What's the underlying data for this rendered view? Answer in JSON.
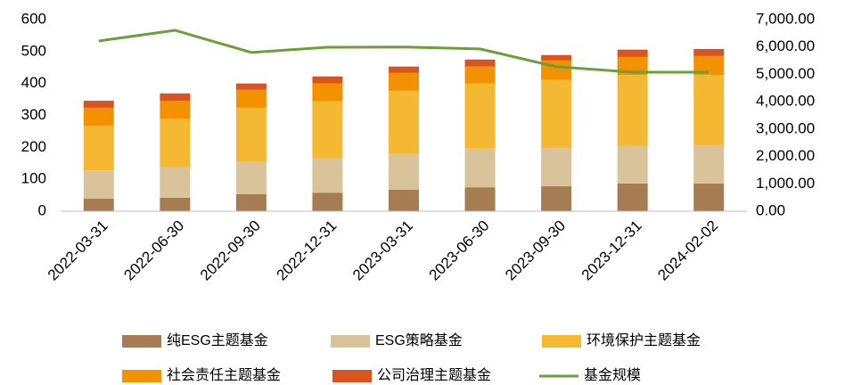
{
  "chart_data": {
    "type": "bar",
    "categories": [
      "2022-03-31",
      "2022-06-30",
      "2022-09-30",
      "2022-12-31",
      "2023-03-31",
      "2023-06-30",
      "2023-09-30",
      "2023-12-31",
      "2024-02-02"
    ],
    "stacked": true,
    "series": [
      {
        "name": "纯ESG主题基金",
        "color": "#a67c52",
        "values": [
          39,
          42,
          53,
          58,
          67,
          75,
          78,
          87,
          87
        ]
      },
      {
        "name": "ESG策略基金",
        "color": "#d9c39a",
        "values": [
          89,
          95,
          101,
          107,
          112,
          121,
          120,
          117,
          120
        ]
      },
      {
        "name": "环境保护主题基金",
        "color": "#f5b833",
        "values": [
          140,
          153,
          170,
          179,
          198,
          204,
          213,
          223,
          220
        ]
      },
      {
        "name": "社会责任主题基金",
        "color": "#f39200",
        "values": [
          56,
          56,
          56,
          56,
          56,
          53,
          61,
          56,
          59
        ]
      },
      {
        "name": "公司治理主题基金",
        "color": "#d9541e",
        "values": [
          22,
          23,
          20,
          22,
          20,
          22,
          17,
          23,
          22
        ]
      },
      {
        "name": "基金规模",
        "color": "#6e9e3a",
        "type": "line",
        "axis": "y2",
        "values": [
          6220,
          6610,
          5800,
          5990,
          6000,
          5930,
          5280,
          5080,
          5080
        ]
      }
    ],
    "ylim": [
      0,
      600
    ],
    "yticks": [
      0,
      100,
      200,
      300,
      400,
      500,
      600
    ],
    "y2lim": [
      0,
      7000
    ],
    "y2ticks": [
      {
        "value": 0,
        "label": "0.00"
      },
      {
        "value": 1000,
        "label": "1,000.00"
      },
      {
        "value": 2000,
        "label": "2,000.00"
      },
      {
        "value": 3000,
        "label": "3,000.00"
      },
      {
        "value": 4000,
        "label": "4,000.00"
      },
      {
        "value": 5000,
        "label": "5,000.00"
      },
      {
        "value": 6000,
        "label": "6,000.00"
      },
      {
        "value": 7000,
        "label": "7,000.00"
      }
    ],
    "grid": false
  }
}
